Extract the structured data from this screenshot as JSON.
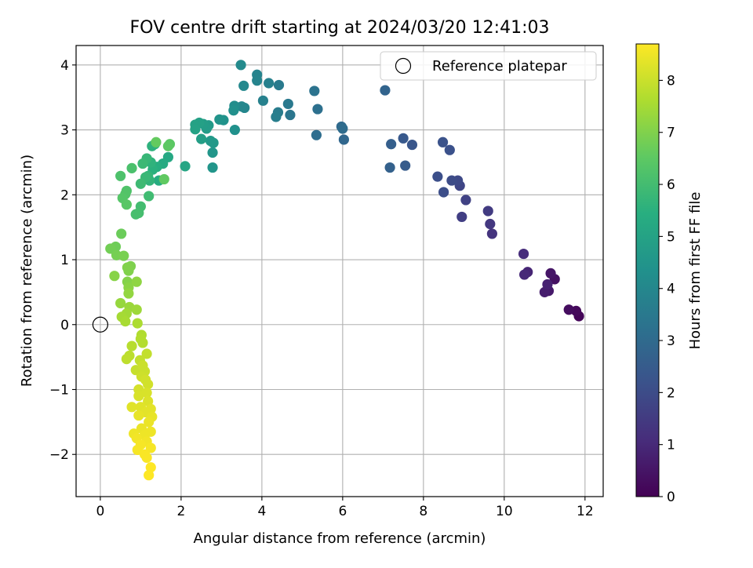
{
  "chart_data": {
    "type": "scatter",
    "title": "FOV centre drift starting at 2024/03/20 12:41:03",
    "xlabel": "Angular distance from reference (arcmin)",
    "ylabel": "Rotation from reference (arcmin)",
    "xlim": [
      -0.6,
      12.45
    ],
    "ylim": [
      -2.65,
      4.3
    ],
    "xticks": [
      0,
      2,
      4,
      6,
      8,
      10,
      12
    ],
    "yticks": [
      -2,
      -1,
      0,
      1,
      2,
      3,
      4
    ],
    "grid": true,
    "legend": {
      "placement": "top-right",
      "entries": [
        "Reference platepar"
      ]
    },
    "reference_point": {
      "x": 0,
      "y": 0
    },
    "colorbar": {
      "label": "Hours from first FF file",
      "range": [
        0,
        8.7
      ],
      "ticks": [
        0,
        1,
        2,
        3,
        4,
        5,
        6,
        7,
        8
      ],
      "colormap": "viridis"
    },
    "points": [
      [
        11.85,
        0.13,
        0.1
      ],
      [
        11.78,
        0.21,
        0.2
      ],
      [
        11.6,
        0.23,
        0.3
      ],
      [
        11.25,
        0.7,
        0.4
      ],
      [
        11.15,
        0.79,
        0.5
      ],
      [
        11.1,
        0.52,
        0.6
      ],
      [
        11.0,
        0.5,
        0.7
      ],
      [
        11.07,
        0.62,
        0.8
      ],
      [
        10.58,
        0.81,
        0.9
      ],
      [
        10.5,
        0.77,
        1.0
      ],
      [
        10.48,
        1.09,
        1.1
      ],
      [
        9.7,
        1.4,
        1.3
      ],
      [
        9.65,
        1.55,
        1.4
      ],
      [
        9.6,
        1.75,
        1.5
      ],
      [
        8.95,
        1.66,
        1.6
      ],
      [
        9.05,
        1.92,
        1.7
      ],
      [
        8.9,
        2.14,
        1.8
      ],
      [
        8.85,
        2.22,
        1.9
      ],
      [
        8.7,
        2.22,
        2.0
      ],
      [
        8.5,
        2.04,
        2.05
      ],
      [
        8.35,
        2.28,
        2.1
      ],
      [
        8.65,
        2.69,
        2.15
      ],
      [
        8.48,
        2.81,
        2.2
      ],
      [
        7.72,
        2.77,
        2.3
      ],
      [
        7.5,
        2.87,
        2.4
      ],
      [
        7.55,
        2.45,
        2.5
      ],
      [
        7.2,
        2.78,
        2.6
      ],
      [
        7.17,
        2.42,
        2.7
      ],
      [
        7.05,
        3.61,
        2.8
      ],
      [
        6.03,
        2.85,
        2.9
      ],
      [
        5.97,
        3.05,
        3.0
      ],
      [
        6.0,
        3.02,
        3.05
      ],
      [
        5.35,
        2.92,
        3.1
      ],
      [
        5.38,
        3.32,
        3.2
      ],
      [
        5.3,
        3.6,
        3.3
      ],
      [
        4.7,
        3.23,
        3.4
      ],
      [
        4.65,
        3.4,
        3.5
      ],
      [
        4.42,
        3.69,
        3.55
      ],
      [
        4.4,
        3.27,
        3.6
      ],
      [
        4.35,
        3.2,
        3.7
      ],
      [
        4.17,
        3.72,
        3.75
      ],
      [
        4.03,
        3.45,
        3.8
      ],
      [
        3.88,
        3.85,
        3.85
      ],
      [
        3.88,
        3.76,
        3.9
      ],
      [
        3.57,
        3.34,
        3.95
      ],
      [
        3.5,
        3.36,
        4.0
      ],
      [
        3.55,
        3.68,
        4.05
      ],
      [
        3.48,
        4.0,
        4.1
      ],
      [
        3.32,
        3.37,
        4.2
      ],
      [
        3.3,
        3.3,
        4.3
      ],
      [
        3.33,
        3.0,
        4.35
      ],
      [
        3.05,
        3.15,
        4.4
      ],
      [
        2.95,
        3.16,
        4.45
      ],
      [
        2.78,
        2.42,
        4.5
      ],
      [
        2.78,
        2.65,
        4.55
      ],
      [
        2.8,
        2.8,
        4.6
      ],
      [
        2.73,
        2.83,
        4.65
      ],
      [
        2.68,
        3.07,
        4.7
      ],
      [
        2.63,
        3.02,
        4.75
      ],
      [
        2.55,
        3.09,
        4.8
      ],
      [
        2.5,
        2.86,
        4.85
      ],
      [
        2.45,
        3.11,
        4.9
      ],
      [
        2.35,
        3.08,
        4.95
      ],
      [
        2.35,
        3.01,
        5.0
      ],
      [
        2.1,
        2.44,
        5.1
      ],
      [
        1.68,
        2.58,
        5.2
      ],
      [
        1.55,
        2.48,
        5.3
      ],
      [
        1.45,
        2.22,
        5.35
      ],
      [
        1.4,
        2.43,
        5.4
      ],
      [
        1.35,
        2.78,
        5.45
      ],
      [
        1.3,
        2.39,
        5.5
      ],
      [
        1.28,
        2.75,
        5.55
      ],
      [
        1.25,
        2.5,
        5.6
      ],
      [
        1.22,
        2.22,
        5.65
      ],
      [
        1.18,
        2.29,
        5.7
      ],
      [
        1.15,
        2.56,
        5.75
      ],
      [
        1.12,
        2.27,
        5.8
      ],
      [
        1.05,
        2.48,
        5.85
      ],
      [
        1.0,
        2.17,
        5.9
      ],
      [
        1.2,
        1.98,
        5.95
      ],
      [
        1.0,
        1.82,
        6.0
      ],
      [
        0.95,
        1.72,
        6.05
      ],
      [
        0.88,
        1.7,
        6.1
      ],
      [
        0.78,
        2.41,
        6.15
      ],
      [
        0.5,
        2.29,
        6.2
      ],
      [
        0.65,
        2.06,
        6.25
      ],
      [
        0.62,
        2.01,
        6.3
      ],
      [
        0.55,
        1.95,
        6.35
      ],
      [
        0.65,
        1.85,
        6.4
      ],
      [
        1.72,
        2.78,
        6.45
      ],
      [
        1.68,
        2.75,
        6.5
      ],
      [
        1.58,
        2.24,
        6.55
      ],
      [
        1.38,
        2.81,
        6.6
      ],
      [
        0.52,
        1.4,
        6.7
      ],
      [
        0.38,
        1.2,
        6.75
      ],
      [
        0.25,
        1.17,
        6.8
      ],
      [
        0.4,
        1.07,
        6.85
      ],
      [
        0.58,
        1.06,
        6.9
      ],
      [
        0.75,
        0.9,
        6.95
      ],
      [
        0.67,
        0.88,
        7.0
      ],
      [
        0.7,
        0.83,
        7.0
      ],
      [
        0.67,
        0.66,
        7.05
      ],
      [
        0.35,
        0.75,
        7.1
      ],
      [
        0.7,
        0.57,
        7.15
      ],
      [
        0.9,
        0.66,
        7.2
      ],
      [
        0.7,
        0.48,
        7.25
      ],
      [
        0.5,
        0.33,
        7.3
      ],
      [
        0.72,
        0.27,
        7.35
      ],
      [
        0.9,
        0.23,
        7.4
      ],
      [
        0.65,
        0.17,
        7.45
      ],
      [
        0.53,
        0.12,
        7.5
      ],
      [
        0.62,
        0.05,
        7.55
      ],
      [
        0.92,
        0.02,
        7.6
      ],
      [
        1.02,
        -0.16,
        7.65
      ],
      [
        1.0,
        -0.22,
        7.7
      ],
      [
        1.05,
        -0.28,
        7.7
      ],
      [
        0.78,
        -0.33,
        7.75
      ],
      [
        0.72,
        -0.48,
        7.8
      ],
      [
        0.65,
        -0.53,
        7.85
      ],
      [
        1.15,
        -0.45,
        7.9
      ],
      [
        0.98,
        -0.55,
        7.9
      ],
      [
        0.88,
        -0.7,
        7.95
      ],
      [
        1.05,
        -0.63,
        8.0
      ],
      [
        1.1,
        -0.72,
        8.0
      ],
      [
        1.02,
        -0.8,
        8.05
      ],
      [
        1.12,
        -0.85,
        8.1
      ],
      [
        1.18,
        -0.92,
        8.1
      ],
      [
        0.95,
        -1.0,
        8.15
      ],
      [
        1.15,
        -1.05,
        8.2
      ],
      [
        0.95,
        -1.1,
        8.2
      ],
      [
        1.18,
        -1.18,
        8.25
      ],
      [
        0.78,
        -1.27,
        8.3
      ],
      [
        1.0,
        -1.27,
        8.3
      ],
      [
        1.25,
        -1.3,
        8.35
      ],
      [
        1.12,
        -1.35,
        8.35
      ],
      [
        0.95,
        -1.4,
        8.4
      ],
      [
        1.28,
        -1.42,
        8.4
      ],
      [
        1.2,
        -1.5,
        8.45
      ],
      [
        1.02,
        -1.6,
        8.45
      ],
      [
        1.25,
        -1.65,
        8.5
      ],
      [
        0.83,
        -1.68,
        8.5
      ],
      [
        1.1,
        -1.7,
        8.5
      ],
      [
        0.9,
        -1.75,
        8.55
      ],
      [
        1.15,
        -1.8,
        8.55
      ],
      [
        1.0,
        -1.85,
        8.6
      ],
      [
        1.25,
        -1.9,
        8.6
      ],
      [
        0.92,
        -1.93,
        8.6
      ],
      [
        1.1,
        -2.0,
        8.65
      ],
      [
        1.15,
        -2.05,
        8.65
      ],
      [
        1.25,
        -2.2,
        8.7
      ],
      [
        1.2,
        -2.32,
        8.7
      ]
    ]
  }
}
